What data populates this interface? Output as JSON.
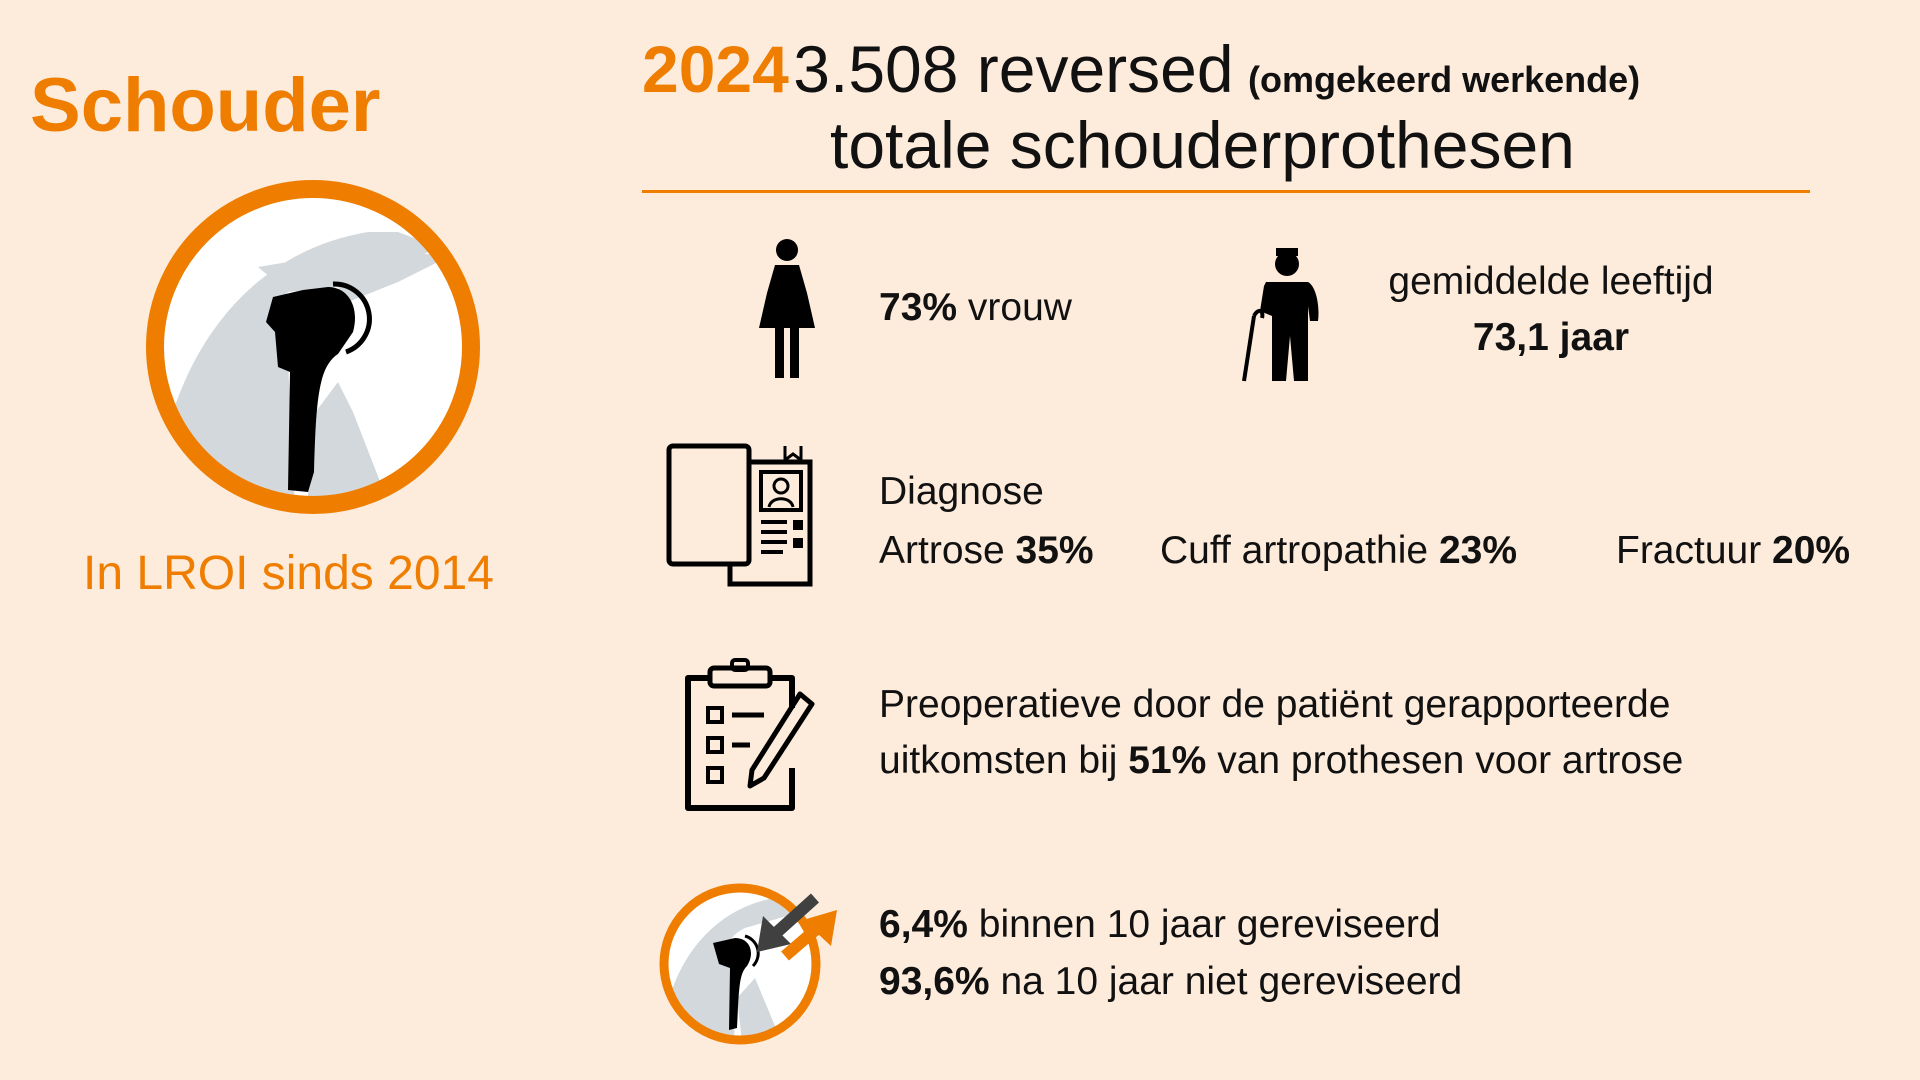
{
  "left": {
    "title": "Schouder",
    "since": "In LROI sinds 2014"
  },
  "header": {
    "year": "2024",
    "count_label": "3.508 reversed",
    "note": "(omgekeerd werkende)",
    "line2": "totale schouderprothesen"
  },
  "stats": {
    "women": {
      "value": "73%",
      "label": "vrouw"
    },
    "age": {
      "label": "gemiddelde leeftijd",
      "value": "73,1 jaar"
    },
    "diagnosis": {
      "title": "Diagnose",
      "items": [
        {
          "label": "Artrose",
          "value": "35%"
        },
        {
          "label": "Cuff artropathie",
          "value": "23%"
        },
        {
          "label": "Fractuur",
          "value": "20%"
        }
      ]
    },
    "prom": {
      "line1": "Preoperatieve door de patiënt gerapporteerde",
      "line2_pre": "uitkomsten bij",
      "line2_value": "51%",
      "line2_post": "van prothesen voor artrose"
    },
    "revision": {
      "revised_value": "6,4%",
      "revised_label": "binnen 10 jaar gereviseerd",
      "not_revised_value": "93,6%",
      "not_revised_label": "na 10 jaar niet gereviseerd"
    }
  },
  "colors": {
    "accent": "#ee7d00",
    "background": "#fdebdc",
    "bone": "#d3d8dc"
  }
}
